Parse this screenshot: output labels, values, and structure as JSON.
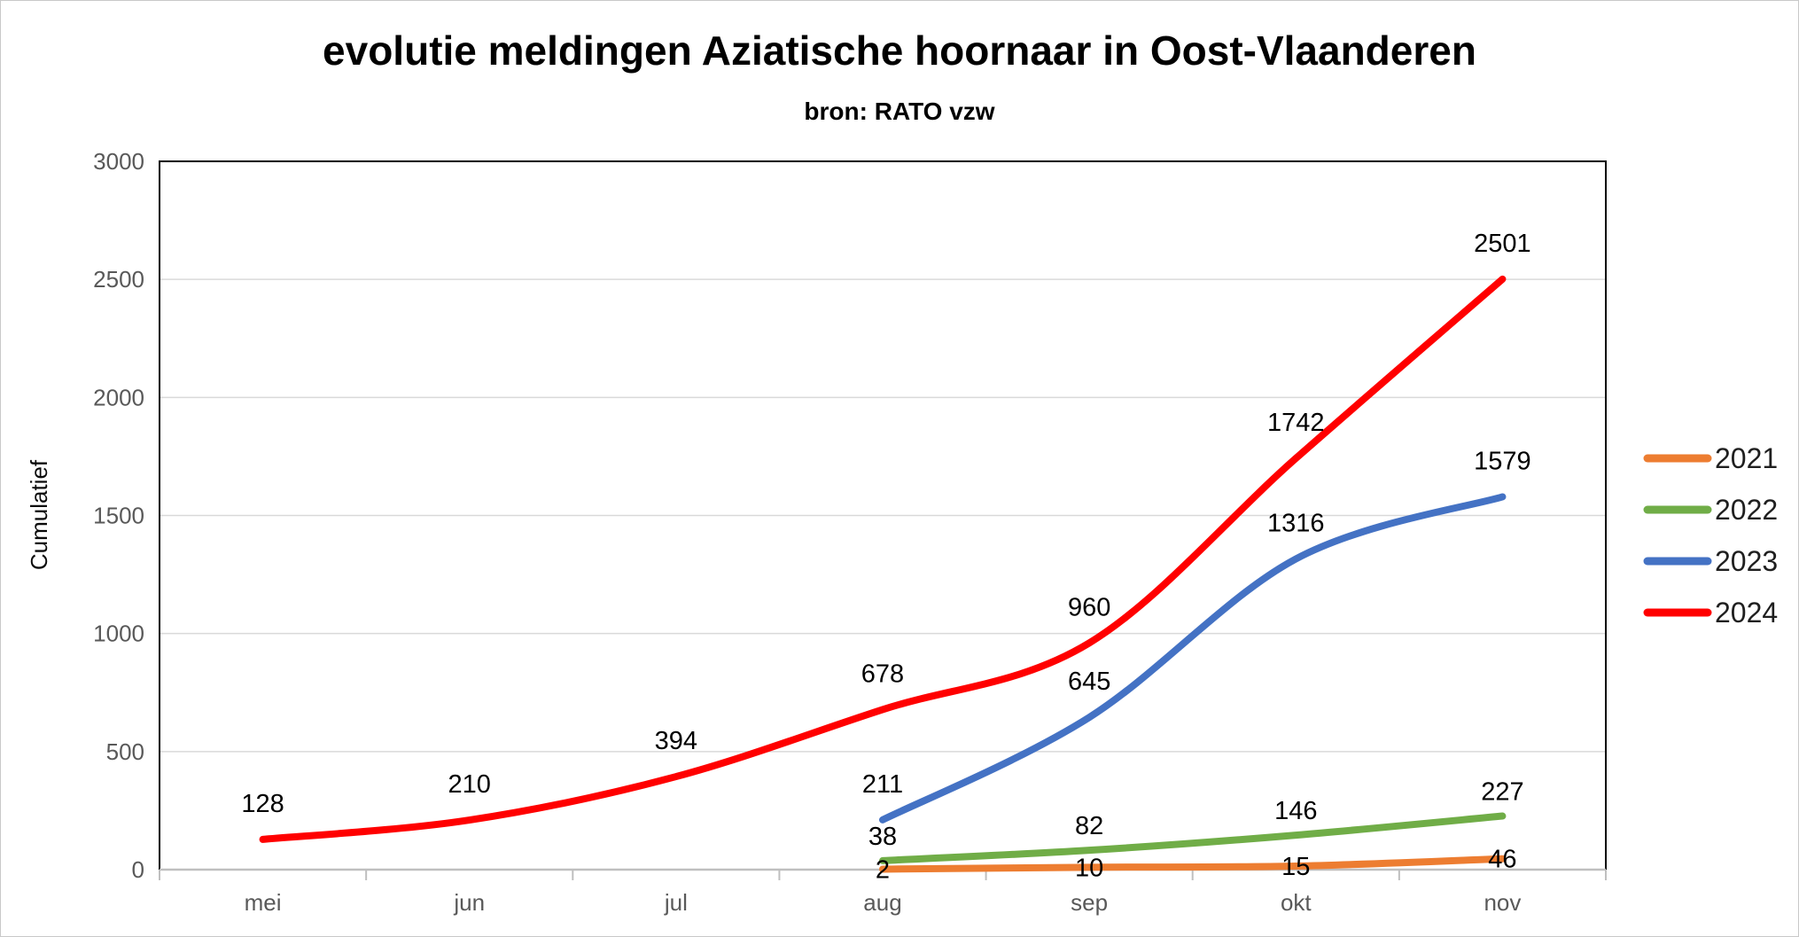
{
  "chart_data": {
    "type": "line",
    "title": "evolutie meldingen Aziatische hoornaar in Oost-Vlaanderen",
    "subtitle": "bron: RATO vzw",
    "ylabel": "Cumulatief",
    "xlabel": "",
    "categories": [
      "mei",
      "jun",
      "jul",
      "aug",
      "sep",
      "okt",
      "nov"
    ],
    "ylim": [
      0,
      3000
    ],
    "yticks": [
      0,
      500,
      1000,
      1500,
      2000,
      2500,
      3000
    ],
    "grid": true,
    "smoothed_lines": true,
    "legend_position": "right",
    "legend_entries": [
      "2021",
      "2022",
      "2023",
      "2024"
    ],
    "series": [
      {
        "name": "2021",
        "color": "#ED7D31",
        "values": [
          null,
          null,
          null,
          2,
          10,
          15,
          46
        ],
        "label_placement": "center"
      },
      {
        "name": "2022",
        "color": "#70AD47",
        "values": [
          null,
          null,
          null,
          38,
          82,
          146,
          227
        ],
        "label_placement": "above"
      },
      {
        "name": "2023",
        "color": "#4472C4",
        "values": [
          null,
          null,
          null,
          211,
          645,
          1316,
          1579
        ],
        "label_placement": "above"
      },
      {
        "name": "2024",
        "color": "#FF0000",
        "values": [
          128,
          210,
          394,
          678,
          960,
          1742,
          2501
        ],
        "label_placement": "above"
      }
    ]
  },
  "colors": {
    "gridline": "#D9D9D9",
    "axis_line": "#BFBFBF",
    "plot_border": "#000000",
    "axis_text": "#595959",
    "label_text": "#000000",
    "background": "#FFFFFF"
  }
}
